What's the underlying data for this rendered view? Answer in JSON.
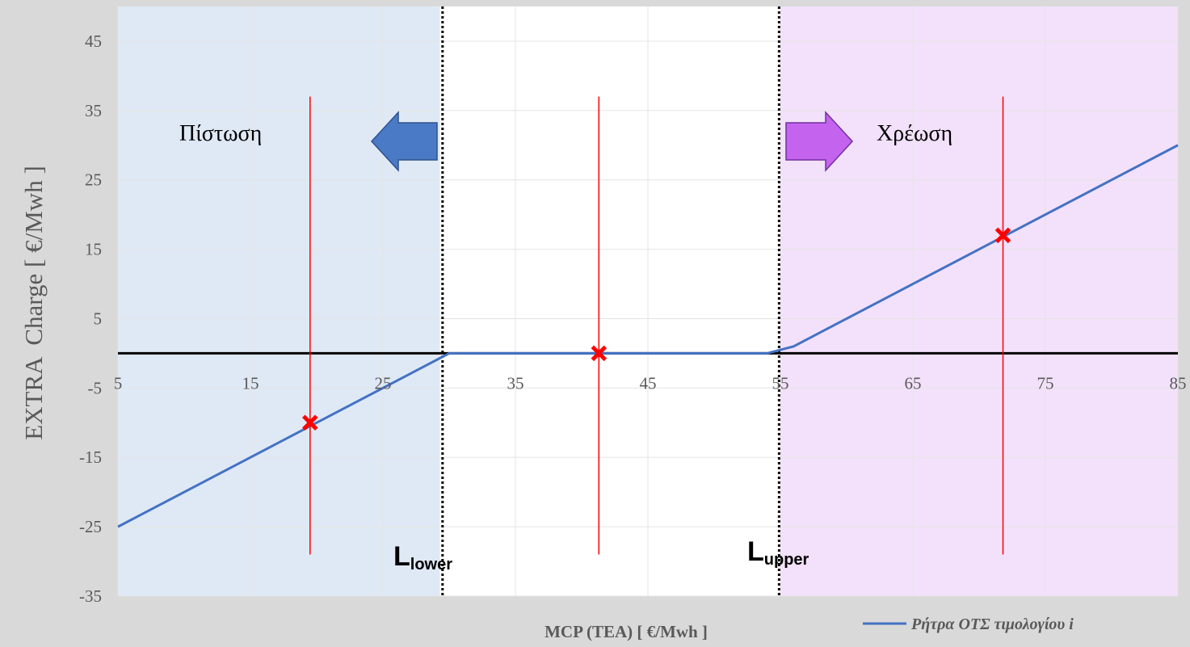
{
  "chart_data": {
    "type": "line",
    "title": "",
    "xlabel": "MCP (TEA) [ €/Mwh ]",
    "ylabel": "EXTRA  Charge [ €/Mwh ]",
    "xlim": [
      5,
      85
    ],
    "ylim": [
      -35,
      50
    ],
    "x_ticks": [
      5,
      15,
      25,
      35,
      45,
      55,
      65,
      75,
      85
    ],
    "y_ticks": [
      -35,
      -25,
      -15,
      -5,
      5,
      15,
      25,
      35,
      45
    ],
    "grid": true,
    "legend_position": "bottom-right",
    "series": [
      {
        "name": "Ρήτρα ΟΤΣ τιμολογίου i",
        "color": "#4472c4",
        "points": [
          [
            5,
            -25
          ],
          [
            30,
            0
          ],
          [
            54,
            0
          ],
          [
            56,
            1
          ],
          [
            85,
            30
          ]
        ]
      }
    ],
    "zero_line": {
      "y": 0,
      "color": "#000000"
    },
    "markers": [
      {
        "x": 19.5,
        "y": -10,
        "error_low": -29,
        "error_high": 37
      },
      {
        "x": 41.3,
        "y": 0,
        "error_low": -29,
        "error_high": 37
      },
      {
        "x": 71.8,
        "y": 17,
        "error_low": -29,
        "error_high": 37
      }
    ],
    "marker_color": "#ff0000",
    "regions": [
      {
        "from": 5,
        "to": 29.3,
        "color": "#dfe9f5",
        "label": "Πίστωση"
      },
      {
        "from": 55,
        "to": 85,
        "color": "#f3e1fb",
        "label": "Χρέωση"
      }
    ],
    "thresholds": [
      {
        "x": 29.5,
        "label_main": "L",
        "label_sub": "lower"
      },
      {
        "x": 54.9,
        "label_main": "L",
        "label_sub": "upper"
      }
    ],
    "arrows": [
      {
        "direction": "left",
        "color": "#4a7ac5",
        "stroke": "#2f528f"
      },
      {
        "direction": "right",
        "color": "#c463ee",
        "stroke": "#7030a0"
      }
    ]
  }
}
